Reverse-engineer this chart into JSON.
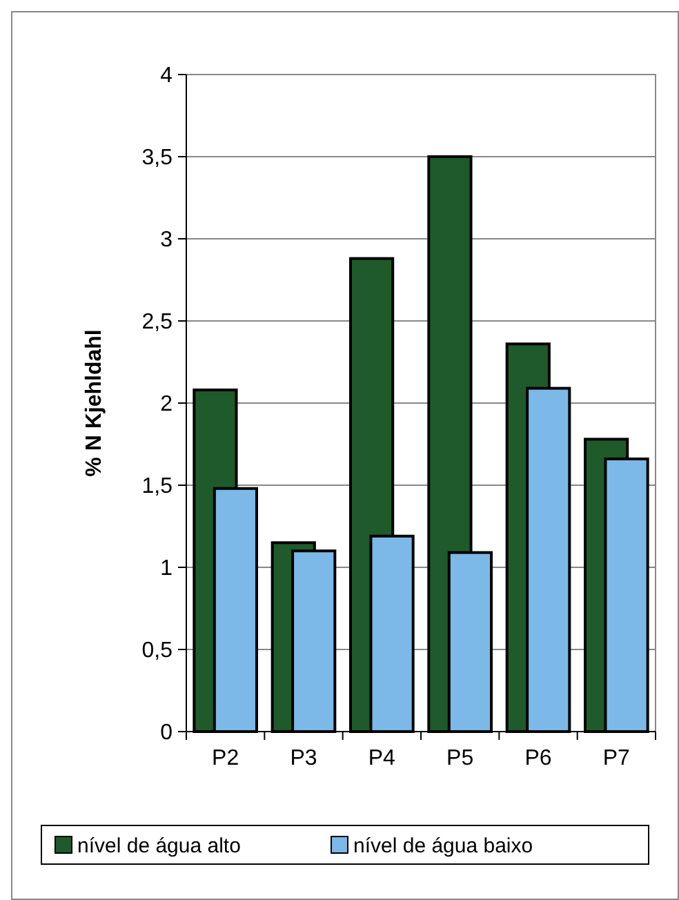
{
  "chart_data": {
    "type": "bar",
    "ylabel": "% N Kjehldahl",
    "categories": [
      "P2",
      "P3",
      "P4",
      "P5",
      "P6",
      "P7"
    ],
    "series": [
      {
        "name": "nível de água alto",
        "color": "#1f5a2a",
        "values": [
          2.08,
          1.15,
          2.88,
          3.5,
          2.36,
          1.78
        ]
      },
      {
        "name": "nível de água baixo",
        "color": "#7cb9e8",
        "values": [
          1.48,
          1.1,
          1.19,
          1.09,
          2.09,
          1.66
        ]
      }
    ],
    "ylim": [
      0,
      4
    ],
    "yticks": [
      0,
      {
        "value": 0.5,
        "label": "0,5"
      },
      1,
      {
        "value": 1.5,
        "label": "1,5"
      },
      2,
      {
        "value": 2.5,
        "label": "2,5"
      },
      3,
      {
        "value": 3.5,
        "label": "3,5"
      },
      4
    ],
    "grid": "y",
    "legend": "bottom"
  }
}
